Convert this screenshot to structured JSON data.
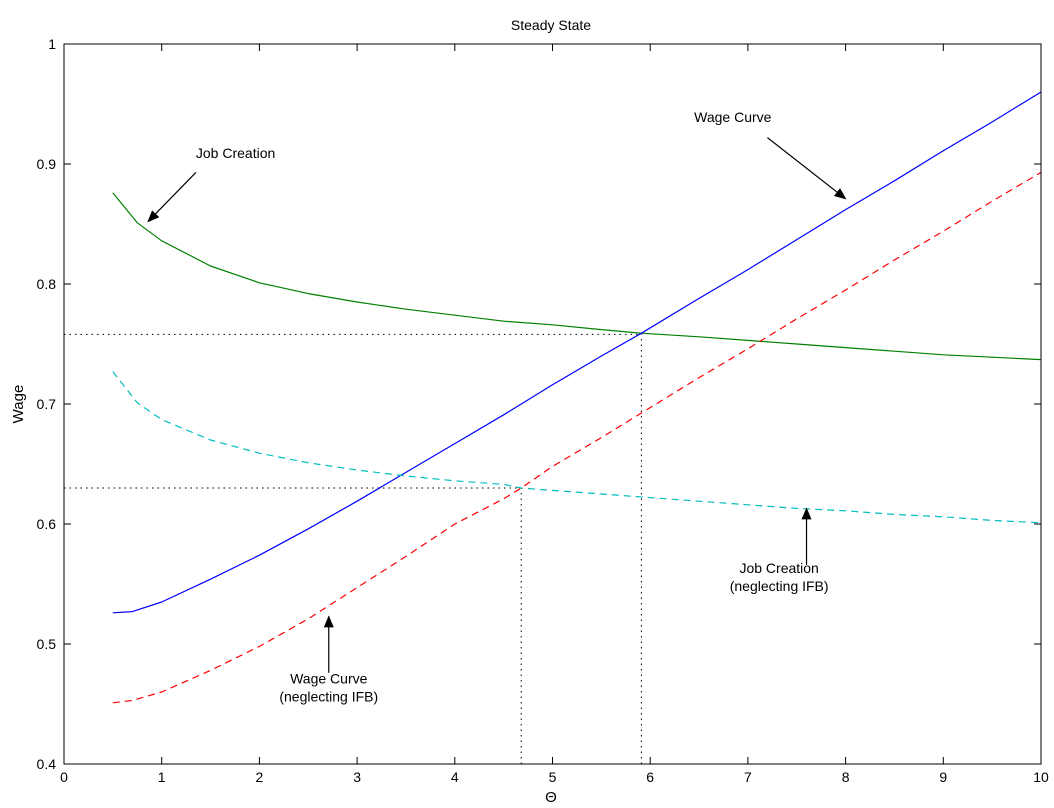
{
  "chart_data": {
    "type": "line",
    "title": "Steady State",
    "xlabel": "Θ",
    "ylabel": "Wage",
    "xlim": [
      0,
      10
    ],
    "ylim": [
      0.4,
      1.0
    ],
    "x_ticks": [
      0,
      1,
      2,
      3,
      4,
      5,
      6,
      7,
      8,
      9,
      10
    ],
    "y_ticks": [
      0.4,
      0.5,
      0.6,
      0.7,
      0.8,
      0.9,
      1.0
    ],
    "x_tick_labels": [
      "0",
      "1",
      "2",
      "3",
      "4",
      "5",
      "6",
      "7",
      "8",
      "9",
      "10"
    ],
    "y_tick_labels": [
      "0.4",
      "0.5",
      "0.6",
      "0.7",
      "0.8",
      "0.9",
      "1"
    ],
    "grid": false,
    "series": [
      {
        "key": "job_creation",
        "color": "#008000",
        "style": "solid",
        "x": [
          0.5,
          0.75,
          1.0,
          1.5,
          2.0,
          2.5,
          3.0,
          3.5,
          4.0,
          4.5,
          5.0,
          5.5,
          5.91,
          6.5,
          7.0,
          7.5,
          8.0,
          8.5,
          9.0,
          9.5,
          10.0
        ],
        "y": [
          0.876,
          0.851,
          0.836,
          0.815,
          0.801,
          0.792,
          0.785,
          0.779,
          0.774,
          0.769,
          0.766,
          0.762,
          0.759,
          0.756,
          0.753,
          0.75,
          0.747,
          0.744,
          0.741,
          0.739,
          0.737
        ]
      },
      {
        "key": "wage_curve",
        "color": "#0000ff",
        "style": "solid",
        "x": [
          0.5,
          0.7,
          1.0,
          1.5,
          2.0,
          2.5,
          3.0,
          3.5,
          4.0,
          4.5,
          5.0,
          5.5,
          5.91,
          6.5,
          7.0,
          7.5,
          8.0,
          8.5,
          9.0,
          9.5,
          10.0
        ],
        "y": [
          0.526,
          0.527,
          0.535,
          0.554,
          0.574,
          0.596,
          0.619,
          0.643,
          0.667,
          0.691,
          0.716,
          0.74,
          0.759,
          0.788,
          0.812,
          0.837,
          0.862,
          0.886,
          0.911,
          0.935,
          0.96
        ]
      },
      {
        "key": "job_creation_no_ifb",
        "color": "#00bfbf",
        "style": "dashed",
        "x": [
          0.5,
          0.75,
          1.0,
          1.5,
          2.0,
          2.5,
          3.0,
          3.5,
          4.0,
          4.5,
          4.68,
          5.0,
          5.5,
          6.0,
          6.5,
          7.0,
          7.5,
          8.0,
          8.5,
          9.0,
          9.5,
          10.0
        ],
        "y": [
          0.727,
          0.701,
          0.687,
          0.67,
          0.659,
          0.651,
          0.645,
          0.64,
          0.636,
          0.633,
          0.63,
          0.628,
          0.625,
          0.622,
          0.619,
          0.616,
          0.613,
          0.611,
          0.608,
          0.606,
          0.603,
          0.601
        ]
      },
      {
        "key": "wage_curve_no_ifb",
        "color": "#ff0000",
        "style": "dashed",
        "x": [
          0.5,
          0.7,
          1.0,
          1.5,
          2.0,
          2.5,
          3.0,
          3.5,
          4.0,
          4.5,
          4.68,
          5.0,
          5.5,
          6.0,
          6.5,
          7.0,
          7.5,
          8.0,
          8.5,
          9.0,
          9.5,
          10.0
        ],
        "y": [
          0.451,
          0.453,
          0.46,
          0.478,
          0.498,
          0.521,
          0.547,
          0.573,
          0.6,
          0.621,
          0.63,
          0.648,
          0.672,
          0.697,
          0.722,
          0.746,
          0.771,
          0.795,
          0.82,
          0.844,
          0.869,
          0.893
        ]
      }
    ],
    "reference_lines": [
      {
        "key": "eq1_h",
        "points": [
          [
            0,
            0.758
          ],
          [
            5.91,
            0.758
          ]
        ]
      },
      {
        "key": "eq1_v",
        "points": [
          [
            5.91,
            0.4
          ],
          [
            5.91,
            0.758
          ]
        ]
      },
      {
        "key": "eq2_h",
        "points": [
          [
            0,
            0.63
          ],
          [
            4.68,
            0.63
          ]
        ]
      },
      {
        "key": "eq2_v",
        "points": [
          [
            4.68,
            0.4
          ],
          [
            4.68,
            0.63
          ]
        ]
      }
    ],
    "annotations": [
      {
        "key": "job_creation_label",
        "lines": [
          "Job Creation"
        ],
        "text_at": [
          1.35,
          0.905
        ],
        "anchor": "start",
        "arrow_from": [
          1.35,
          0.893
        ],
        "arrow_to": [
          0.86,
          0.852
        ]
      },
      {
        "key": "wage_curve_label",
        "lines": [
          "Wage Curve"
        ],
        "text_at": [
          6.45,
          0.935
        ],
        "anchor": "start",
        "arrow_from": [
          7.2,
          0.922
        ],
        "arrow_to": [
          8.0,
          0.871
        ]
      },
      {
        "key": "job_creation_no_ifb_label",
        "lines": [
          "Job Creation",
          "(neglecting IFB)"
        ],
        "text_at": [
          7.32,
          0.559
        ],
        "anchor": "middle",
        "arrow_from": [
          7.6,
          0.566
        ],
        "arrow_to": [
          7.6,
          0.613
        ]
      },
      {
        "key": "wage_curve_no_ifb_label",
        "lines": [
          "Wage Curve",
          "(neglecting IFB)"
        ],
        "text_at": [
          2.71,
          0.467
        ],
        "anchor": "middle",
        "arrow_from": [
          2.71,
          0.476
        ],
        "arrow_to": [
          2.71,
          0.523
        ]
      }
    ]
  }
}
